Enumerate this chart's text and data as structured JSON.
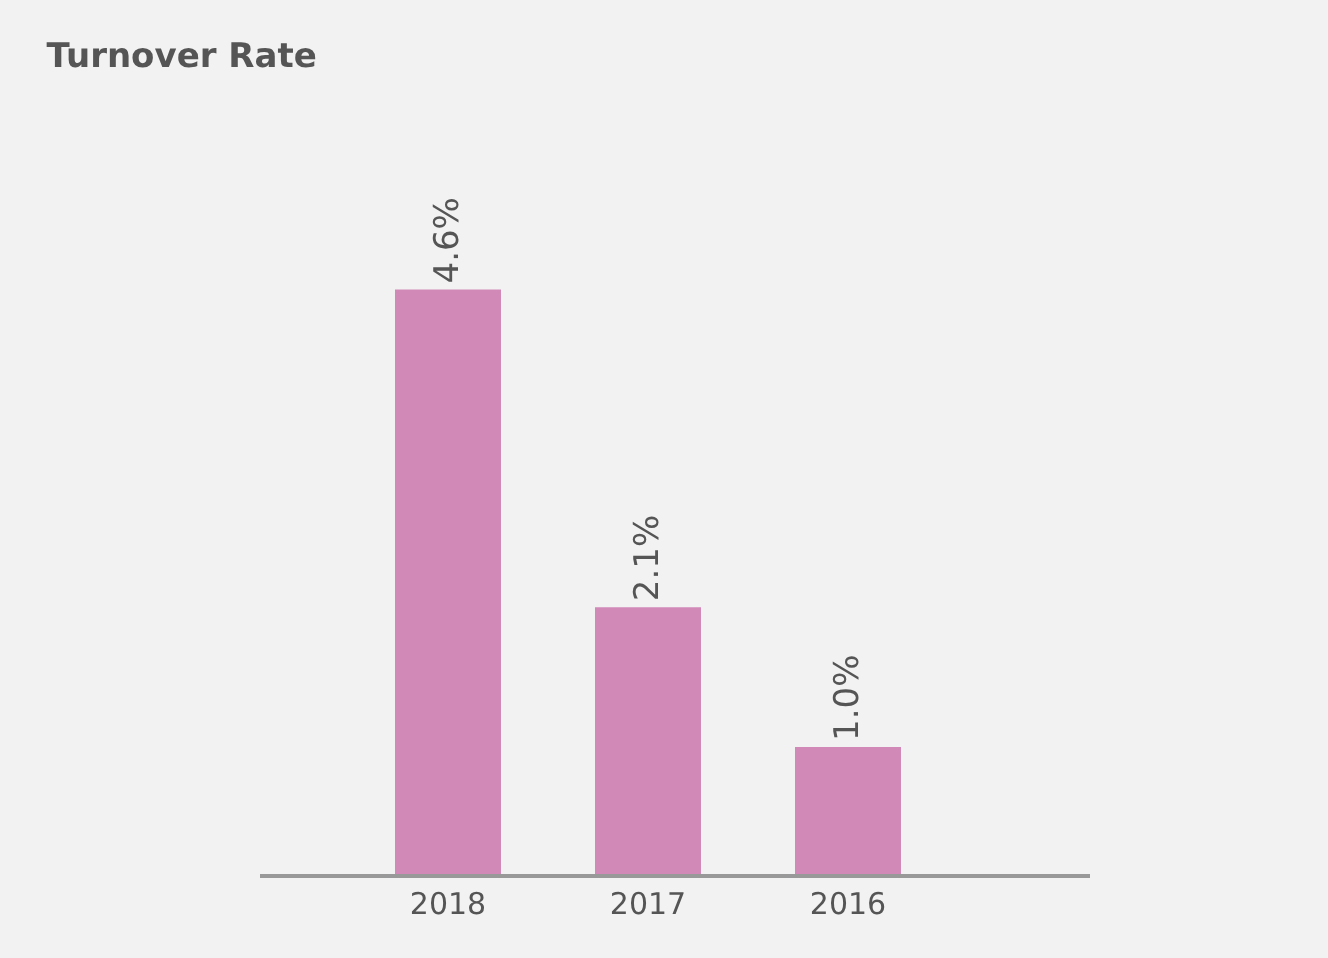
{
  "chart_data": {
    "type": "bar",
    "title": "Turnover Rate",
    "categories": [
      "2018",
      "2017",
      "2016"
    ],
    "values": [
      4.6,
      2.1,
      1.0
    ],
    "value_labels": [
      "4.6%",
      "2.1%",
      "1.0%"
    ],
    "color": "#d189b8",
    "grid": false,
    "legend": false
  }
}
